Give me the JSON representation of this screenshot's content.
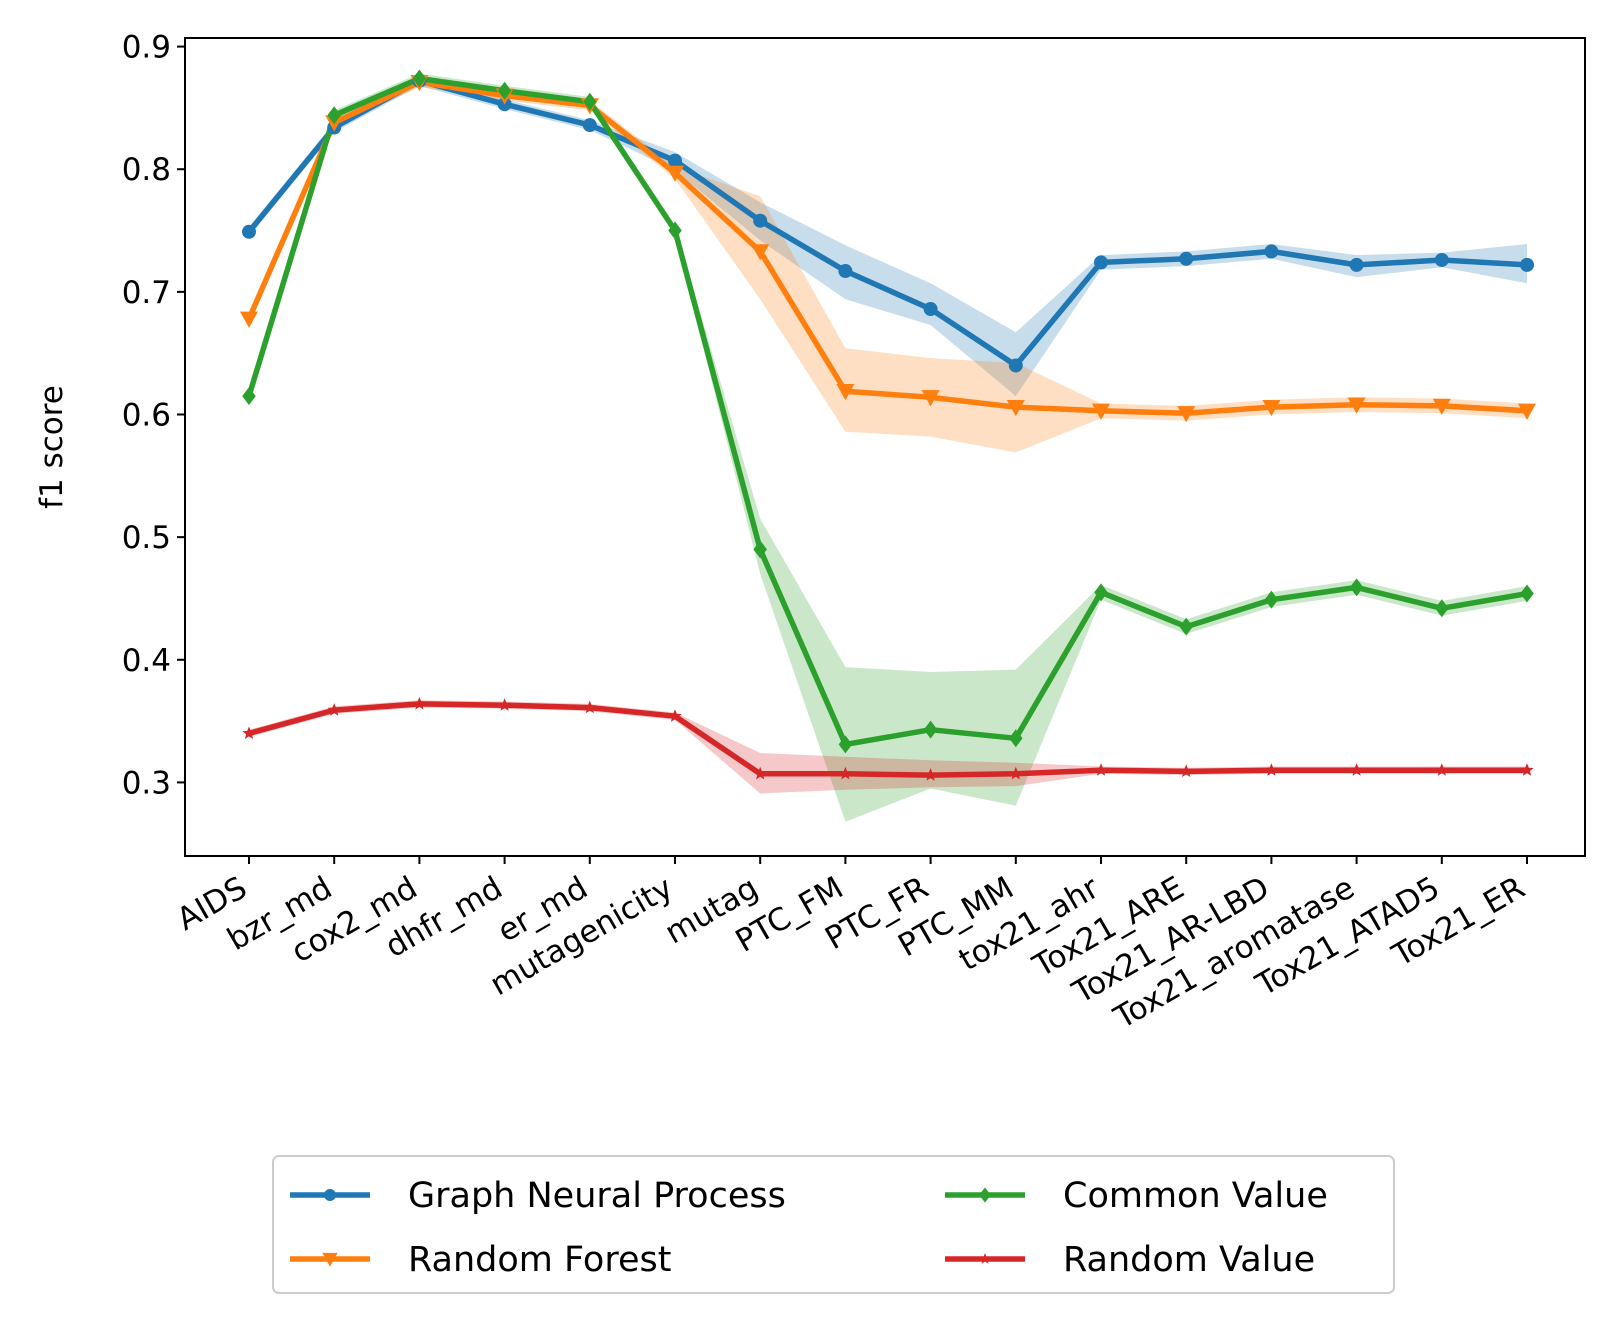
{
  "chart_data": {
    "type": "line",
    "title": "",
    "xlabel": "",
    "ylabel": "f1 score",
    "ylim": [
      0.24,
      0.907
    ],
    "yticks": [
      "0.3",
      "0.4",
      "0.5",
      "0.6",
      "0.7",
      "0.8",
      "0.9"
    ],
    "grid": false,
    "legend_position": "bottom-center",
    "categories": [
      "AIDS",
      "bzr_md",
      "cox2_md",
      "dhfr_md",
      "er_md",
      "mutagenicity",
      "mutag",
      "PTC_FM",
      "PTC_FR",
      "PTC_MM",
      "tox21_ahr",
      "Tox21_ARE",
      "Tox21_AR-LBD",
      "Tox21_aromatase",
      "Tox21_ATAD5",
      "Tox21_ER"
    ],
    "series": [
      {
        "name": "Graph Neural Process",
        "color": "#1f77b4",
        "marker": "circle",
        "values": [
          0.749,
          0.834,
          0.872,
          0.853,
          0.836,
          0.807,
          0.758,
          0.717,
          0.686,
          0.64,
          0.724,
          0.727,
          0.733,
          0.722,
          0.726,
          0.722
        ],
        "lower": [
          0.745,
          0.83,
          0.868,
          0.849,
          0.832,
          0.799,
          0.742,
          0.694,
          0.673,
          0.615,
          0.718,
          0.721,
          0.727,
          0.712,
          0.72,
          0.707
        ],
        "upper": [
          0.753,
          0.838,
          0.876,
          0.857,
          0.84,
          0.814,
          0.773,
          0.738,
          0.707,
          0.667,
          0.73,
          0.733,
          0.739,
          0.73,
          0.732,
          0.739
        ]
      },
      {
        "name": "Random Forest",
        "color": "#ff7f0e",
        "marker": "triangle-down",
        "values": [
          0.678,
          0.838,
          0.871,
          0.86,
          0.852,
          0.797,
          0.733,
          0.619,
          0.614,
          0.606,
          0.603,
          0.601,
          0.606,
          0.608,
          0.607,
          0.603
        ],
        "lower": [
          0.674,
          0.834,
          0.867,
          0.856,
          0.848,
          0.792,
          0.694,
          0.586,
          0.582,
          0.569,
          0.597,
          0.595,
          0.6,
          0.602,
          0.601,
          0.597
        ],
        "upper": [
          0.682,
          0.842,
          0.875,
          0.864,
          0.856,
          0.802,
          0.778,
          0.654,
          0.646,
          0.642,
          0.609,
          0.607,
          0.612,
          0.614,
          0.613,
          0.609
        ]
      },
      {
        "name": "Common Value",
        "color": "#2ca02c",
        "marker": "diamond",
        "values": [
          0.615,
          0.844,
          0.874,
          0.864,
          0.855,
          0.75,
          0.49,
          0.331,
          0.343,
          0.336,
          0.455,
          0.427,
          0.449,
          0.459,
          0.442,
          0.454
        ],
        "lower": [
          0.611,
          0.84,
          0.87,
          0.86,
          0.851,
          0.746,
          0.47,
          0.268,
          0.295,
          0.281,
          0.449,
          0.421,
          0.443,
          0.453,
          0.436,
          0.448
        ],
        "upper": [
          0.619,
          0.848,
          0.878,
          0.868,
          0.859,
          0.754,
          0.515,
          0.394,
          0.39,
          0.392,
          0.461,
          0.433,
          0.455,
          0.465,
          0.448,
          0.46
        ]
      },
      {
        "name": "Random Value",
        "color": "#d62728",
        "marker": "star",
        "values": [
          0.34,
          0.359,
          0.364,
          0.363,
          0.361,
          0.354,
          0.307,
          0.307,
          0.306,
          0.307,
          0.31,
          0.309,
          0.31,
          0.31,
          0.31,
          0.31
        ],
        "lower": [
          0.337,
          0.356,
          0.361,
          0.36,
          0.358,
          0.351,
          0.291,
          0.294,
          0.296,
          0.297,
          0.307,
          0.306,
          0.307,
          0.307,
          0.307,
          0.307
        ],
        "upper": [
          0.343,
          0.362,
          0.367,
          0.366,
          0.364,
          0.357,
          0.324,
          0.321,
          0.318,
          0.316,
          0.313,
          0.312,
          0.313,
          0.313,
          0.313,
          0.313
        ]
      }
    ],
    "legend_columns": [
      [
        "Graph Neural Process",
        "Random Forest"
      ],
      [
        "Common Value",
        "Random Value"
      ]
    ]
  }
}
